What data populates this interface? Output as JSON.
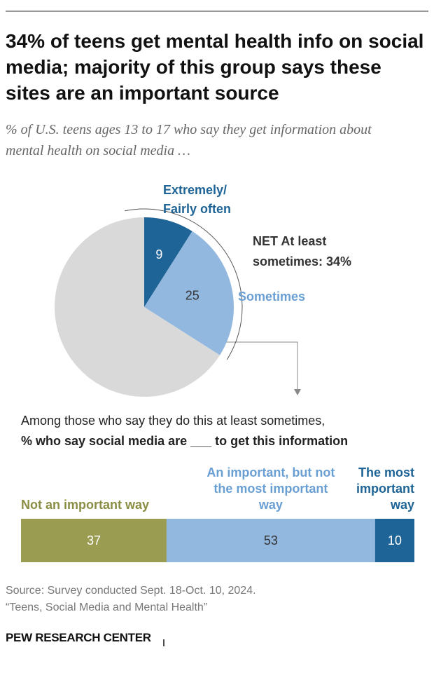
{
  "header": {
    "title": "34% of teens get mental health info on social media; majority of this group says these sites are an important source",
    "subtitle": "% of U.S. teens ages 13 to 17 who say they get information about mental health on social media …"
  },
  "chart_data": [
    {
      "type": "pie",
      "categories": [
        "Extremely/ Fairly often",
        "Sometimes",
        null
      ],
      "values": [
        9,
        25,
        66
      ],
      "colors": [
        "#1f6496",
        "#92b8e0",
        "#d9d9d9"
      ],
      "label_colors": [
        "#1f6496",
        "#6a9fd4"
      ],
      "annotation": "NET At least sometimes: 34%"
    },
    {
      "type": "stacked-bar",
      "orientation": "horizontal",
      "subtitle": "Among those who say they do this at least sometimes,",
      "subtitle_bold": "% who say social media are ___ to get this information",
      "xlim": [
        0,
        100
      ],
      "series": [
        {
          "name": "Not an important way",
          "color": "#9a9c52",
          "values": [
            37
          ]
        },
        {
          "name": "An important, but not the most important way",
          "color": "#92b8e0",
          "values": [
            53
          ]
        },
        {
          "name": "The most important way",
          "color": "#1f6496",
          "values": [
            10
          ]
        }
      ]
    }
  ],
  "footer": {
    "source": "Source: Survey conducted Sept. 18-Oct. 10, 2024.",
    "report": "“Teens, Social Media and Mental Health”",
    "logo": "PEW RESEARCH CENTER"
  }
}
